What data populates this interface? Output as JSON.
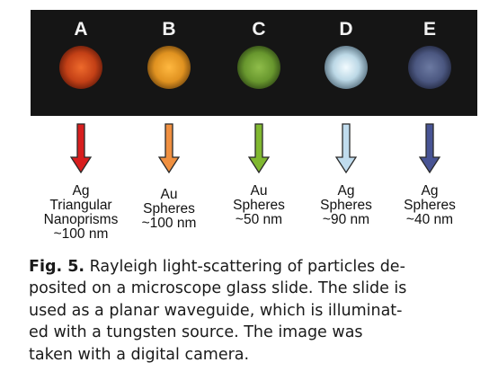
{
  "figure": {
    "panels": [
      {
        "letter": "A",
        "color": "#d3461a",
        "arrow_color": "#d81e1e",
        "label_lines": [
          "Ag",
          "Triangular",
          "Nanoprisms",
          "~100 nm"
        ]
      },
      {
        "letter": "B",
        "color": "#f0a030",
        "arrow_color": "#f09040",
        "label_lines": [
          "Au",
          "Spheres",
          "~100 nm"
        ]
      },
      {
        "letter": "C",
        "color": "#78a838",
        "arrow_color": "#80b830",
        "label_lines": [
          "Au",
          "Spheres",
          "~50 nm"
        ]
      },
      {
        "letter": "D",
        "color": "#d8eef8",
        "arrow_color": "#c0dcee",
        "label_lines": [
          "Ag",
          "Spheres",
          "~90 nm"
        ]
      },
      {
        "letter": "E",
        "color": "#56628c",
        "arrow_color": "#485494",
        "label_lines": [
          "Ag",
          "Spheres",
          "~40 nm"
        ]
      }
    ]
  },
  "caption": {
    "label": "Fig. 5.",
    "lines": [
      " Rayleigh light-scattering of particles de-",
      "posited on a microscope glass slide. The slide is",
      "used as a planar waveguide, which is illuminat-",
      "ed with a tungsten source. The image was",
      "taken with a digital camera."
    ]
  }
}
